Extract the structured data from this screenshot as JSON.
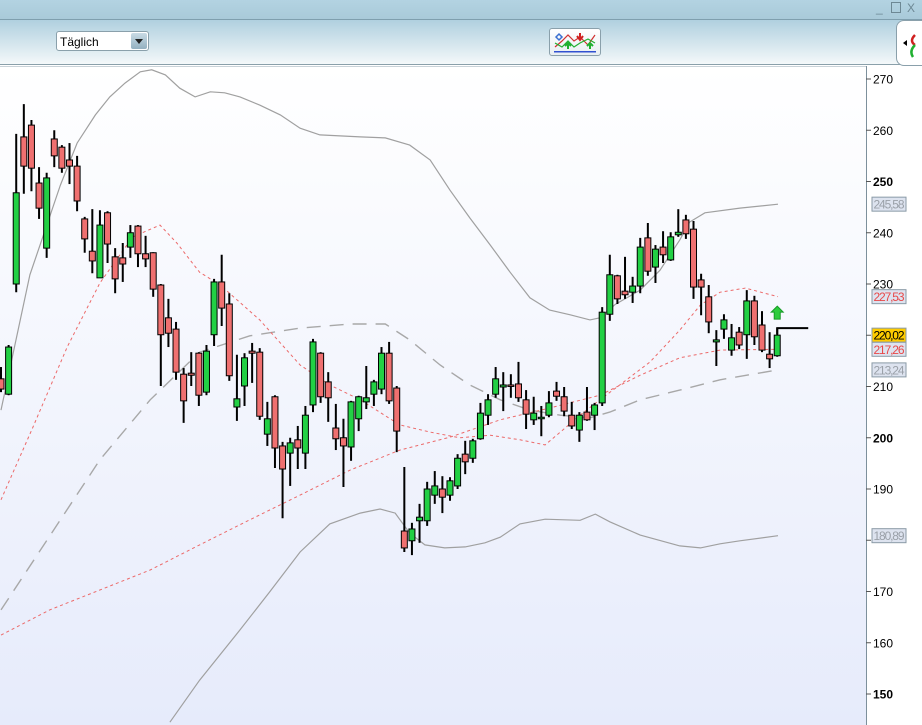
{
  "window": {
    "minimize_icon": "minimize-icon",
    "maximize_icon": "maximize-icon",
    "close_icon": "close-icon"
  },
  "toolbar": {
    "period_select": "Täglich",
    "indicator_button_icon": "indicator-chart-icon",
    "side_button_icon": "signal-arrows-icon"
  },
  "colors": {
    "up": "#22d044",
    "down": "#ef7070",
    "band": "#a0a0a0",
    "envelope": "#ec6a6a",
    "last_price_bg": "#ffcc00",
    "label_bg": "#dde3ef"
  },
  "axis": {
    "ticks": [
      {
        "v": 270,
        "label": "270",
        "bold": false
      },
      {
        "v": 260,
        "label": "260",
        "bold": false
      },
      {
        "v": 250,
        "label": "250",
        "bold": true
      },
      {
        "v": 240,
        "label": "240",
        "bold": false
      },
      {
        "v": 230,
        "label": "230",
        "bold": false
      },
      {
        "v": 210,
        "label": "210",
        "bold": false
      },
      {
        "v": 200,
        "label": "200",
        "bold": true
      },
      {
        "v": 190,
        "label": "190",
        "bold": false
      },
      {
        "v": 170,
        "label": "170",
        "bold": false
      },
      {
        "v": 160,
        "label": "160",
        "bold": false
      },
      {
        "v": 150,
        "label": "150",
        "bold": true
      }
    ],
    "value_labels": [
      {
        "v": 245.58,
        "label": "245,58",
        "style": "gray"
      },
      {
        "v": 227.53,
        "label": "227,53",
        "style": "red"
      },
      {
        "v": 220.02,
        "label": "220,02",
        "style": "last"
      },
      {
        "v": 217.26,
        "label": "217,26",
        "style": "red"
      },
      {
        "v": 213.24,
        "label": "213,24",
        "style": "gray"
      },
      {
        "v": 180.89,
        "label": "180,89",
        "style": "gray"
      }
    ]
  },
  "chart_data": {
    "type": "candlestick",
    "ylim": [
      144,
      272
    ],
    "last_price": 220.02,
    "signal": "buy-arrow",
    "candles_ohlc": [
      [
        211.5,
        213.8,
        208.9,
        209.5
      ],
      [
        208.5,
        218.1,
        208.3,
        217.7
      ],
      [
        230,
        259.3,
        228.4,
        247.8
      ],
      [
        258.7,
        265.1,
        247.6,
        253
      ],
      [
        261,
        262,
        248.1,
        252.6
      ],
      [
        249.7,
        252.8,
        242.7,
        244.8
      ],
      [
        237,
        251.7,
        235.1,
        250.7
      ],
      [
        258.3,
        260,
        252.8,
        255
      ],
      [
        256.7,
        257.1,
        251.7,
        252.6
      ],
      [
        254.2,
        257.5,
        249.5,
        253
      ],
      [
        253,
        255,
        244.2,
        246.2
      ],
      [
        242.7,
        243.1,
        236.1,
        238.8
      ],
      [
        236.4,
        244.6,
        232.1,
        234.5
      ],
      [
        231.2,
        244.4,
        231.2,
        241.5
      ],
      [
        243.9,
        244.2,
        234.1,
        237.8
      ],
      [
        235.3,
        237,
        228.2,
        231
      ],
      [
        235.1,
        238,
        230.4,
        233.9
      ],
      [
        237.2,
        241.5,
        235.1,
        240
      ],
      [
        241.3,
        241.5,
        233.3,
        235.9
      ],
      [
        235.9,
        239.4,
        233.3,
        234.9
      ],
      [
        236.1,
        236.2,
        227.5,
        229
      ],
      [
        229.8,
        230,
        210.1,
        220.1
      ],
      [
        223.4,
        227.1,
        217.7,
        220.4
      ],
      [
        221.2,
        222.6,
        211.3,
        212.8
      ],
      [
        212.4,
        213.6,
        202.9,
        207.2
      ],
      [
        212.6,
        216.7,
        210.1,
        212.2
      ],
      [
        216.5,
        216.7,
        206.2,
        208.3
      ],
      [
        208.9,
        218.1,
        208.3,
        216.9
      ],
      [
        220.1,
        231,
        217.9,
        230.4
      ],
      [
        230.4,
        235.7,
        221.8,
        225.3
      ],
      [
        226.1,
        228.2,
        211.1,
        212.1
      ],
      [
        206,
        216.2,
        203.3,
        207.6
      ],
      [
        210.1,
        216.5,
        206.2,
        215.6
      ],
      [
        216.9,
        218.5,
        210.7,
        216.5
      ],
      [
        216.7,
        217.5,
        203.5,
        204.2
      ],
      [
        200.7,
        207,
        198.4,
        203.7
      ],
      [
        208,
        208.3,
        194.1,
        198
      ],
      [
        198.4,
        199.2,
        184.3,
        193.9
      ],
      [
        197,
        200,
        190.6,
        199
      ],
      [
        199.6,
        202.3,
        193.9,
        198
      ],
      [
        197,
        206.2,
        193.9,
        204.4
      ],
      [
        206.4,
        219.3,
        205,
        218.7
      ],
      [
        216.5,
        216.7,
        206.8,
        208
      ],
      [
        210.9,
        212.8,
        203.1,
        207.8
      ],
      [
        201.9,
        206.6,
        197.6,
        199.8
      ],
      [
        200,
        203.7,
        190.4,
        198.4
      ],
      [
        198.2,
        207.2,
        195.5,
        207
      ],
      [
        203.7,
        208.2,
        201.3,
        208
      ],
      [
        207,
        214,
        205.6,
        207.8
      ],
      [
        208.5,
        211.3,
        206.2,
        210.9
      ],
      [
        209.5,
        217.7,
        208.5,
        216.5
      ],
      [
        216.5,
        218.7,
        206.6,
        207.2
      ],
      [
        209.7,
        210.1,
        197.2,
        201.3
      ],
      [
        181.8,
        194.3,
        177.7,
        178.5
      ],
      [
        179.9,
        183.4,
        177.1,
        182.2
      ],
      [
        183.8,
        187.1,
        179.5,
        184.5
      ],
      [
        183.8,
        191.4,
        182.8,
        190
      ],
      [
        188.8,
        193.5,
        187.1,
        190.6
      ],
      [
        190,
        192.5,
        185.3,
        188.4
      ],
      [
        188.8,
        192.3,
        187.7,
        191.6
      ],
      [
        190.6,
        196.8,
        190,
        196
      ],
      [
        196.8,
        199.4,
        192.9,
        195.3
      ],
      [
        196,
        199.8,
        195.1,
        199.4
      ],
      [
        199.8,
        206.8,
        199.6,
        204.8
      ],
      [
        204.4,
        208.5,
        202.5,
        207.4
      ],
      [
        208.5,
        213.8,
        207.8,
        211.5
      ],
      [
        209.9,
        212.8,
        205.2,
        210.3
      ],
      [
        210.3,
        212.4,
        207.8,
        210.1
      ],
      [
        210.5,
        214.8,
        207,
        207.8
      ],
      [
        207.4,
        209.3,
        201.7,
        204.6
      ],
      [
        203.5,
        208,
        202.5,
        204.8
      ],
      [
        204,
        206.2,
        200.3,
        204
      ],
      [
        204.4,
        209.1,
        204,
        206.8
      ],
      [
        209.1,
        210.9,
        207.2,
        208.1
      ],
      [
        208,
        209.9,
        204.2,
        205.2
      ],
      [
        204.4,
        207,
        201.7,
        202.3
      ],
      [
        201.5,
        205,
        199.2,
        204.4
      ],
      [
        205,
        209.9,
        203.3,
        203.5
      ],
      [
        204.4,
        206.8,
        201.5,
        206.4
      ],
      [
        206.8,
        225.5,
        206.2,
        224.5
      ],
      [
        224.1,
        235.7,
        222.8,
        231.8
      ],
      [
        231.6,
        231.8,
        226.1,
        227.1
      ],
      [
        228.6,
        235.3,
        227.1,
        227.9
      ],
      [
        228.4,
        231.4,
        226.3,
        229.6
      ],
      [
        229.6,
        239,
        228.2,
        237.2
      ],
      [
        239,
        241.9,
        231.6,
        232.5
      ],
      [
        233.3,
        237.6,
        230.2,
        236.8
      ],
      [
        237.2,
        240.3,
        234.1,
        235.7
      ],
      [
        234.7,
        240.1,
        234.5,
        239.2
      ],
      [
        239.6,
        244.6,
        239.2,
        240.1
      ],
      [
        242.5,
        243.5,
        238.8,
        239.8
      ],
      [
        240.7,
        242.3,
        227.1,
        229.4
      ],
      [
        230.8,
        232,
        223.9,
        229.4
      ],
      [
        227.5,
        229.8,
        220.4,
        222.6
      ],
      [
        218.7,
        221,
        214,
        219.1
      ],
      [
        221.2,
        224.1,
        219.3,
        223
      ],
      [
        217.1,
        222.2,
        216,
        219.5
      ],
      [
        220.6,
        221.6,
        217.3,
        218.1
      ],
      [
        220.1,
        228.8,
        215.4,
        226.7
      ],
      [
        226.7,
        227.7,
        218.1,
        219.7
      ],
      [
        222,
        224.7,
        216.7,
        217.1
      ],
      [
        216.3,
        220.6,
        213.6,
        215.4
      ],
      [
        216,
        221.4,
        215.8,
        220.02
      ]
    ],
    "lines": [
      {
        "style": "band-upper",
        "points": [
          [
            0,
            205.4
          ],
          [
            3.8,
            231.8
          ],
          [
            5.8,
            240.5
          ],
          [
            7.8,
            249.3
          ],
          [
            10,
            257.5
          ],
          [
            12.4,
            263
          ],
          [
            14.3,
            266.5
          ],
          [
            16.3,
            269.2
          ],
          [
            18.3,
            271.4
          ],
          [
            19.8,
            271.8
          ],
          [
            21.6,
            270.8
          ],
          [
            23.5,
            268.2
          ],
          [
            25.5,
            266.5
          ],
          [
            27.5,
            267.5
          ],
          [
            29.4,
            267.3
          ],
          [
            31.4,
            266.5
          ],
          [
            34,
            264.9
          ],
          [
            36.7,
            263
          ],
          [
            39.3,
            260.4
          ],
          [
            41.9,
            259.1
          ],
          [
            47.2,
            258.7
          ],
          [
            50.5,
            258.5
          ],
          [
            53.7,
            257.1
          ],
          [
            56.4,
            254.2
          ],
          [
            59,
            248.3
          ],
          [
            61.6,
            242.9
          ],
          [
            64.3,
            237.6
          ],
          [
            66.9,
            232.3
          ],
          [
            69.5,
            227.3
          ],
          [
            72.1,
            224.9
          ],
          [
            74.8,
            224
          ],
          [
            77.4,
            223
          ],
          [
            78.7,
            223.4
          ],
          [
            80.7,
            226
          ],
          [
            84,
            228.8
          ],
          [
            86.6,
            232.7
          ],
          [
            89.2,
            238.6
          ],
          [
            90.5,
            242.1
          ],
          [
            92.5,
            243.9
          ],
          [
            97.1,
            244.8
          ],
          [
            102.1,
            245.58
          ]
        ]
      },
      {
        "style": "band-lower",
        "points": [
          [
            22.2,
            144.5
          ],
          [
            26.1,
            152.7
          ],
          [
            31.4,
            162.5
          ],
          [
            35.3,
            169.9
          ],
          [
            39.3,
            177.7
          ],
          [
            43.2,
            183.2
          ],
          [
            47.2,
            185.3
          ],
          [
            49.8,
            186.1
          ],
          [
            51.8,
            185.3
          ],
          [
            53.7,
            181.4
          ],
          [
            55.7,
            179.1
          ],
          [
            58.3,
            178.5
          ],
          [
            61,
            178.7
          ],
          [
            63.6,
            179.5
          ],
          [
            65.6,
            180.6
          ],
          [
            68.2,
            183.2
          ],
          [
            71.5,
            184.1
          ],
          [
            76.1,
            183.9
          ],
          [
            78.1,
            185.1
          ],
          [
            80,
            183.6
          ],
          [
            84,
            181
          ],
          [
            89.2,
            178.9
          ],
          [
            91.9,
            178.5
          ],
          [
            94.5,
            179.3
          ],
          [
            97.1,
            179.9
          ],
          [
            102.1,
            180.89
          ]
        ]
      },
      {
        "style": "band-middle",
        "points": [
          [
            0,
            166.4
          ],
          [
            7.8,
            184
          ],
          [
            13,
            195.7
          ],
          [
            19.6,
            207.4
          ],
          [
            26.1,
            216.7
          ],
          [
            32.7,
            219.9
          ],
          [
            39.3,
            221.4
          ],
          [
            45.9,
            222.2
          ],
          [
            50.5,
            222.2
          ],
          [
            53.7,
            219.1
          ],
          [
            57.7,
            214.2
          ],
          [
            61.6,
            210.3
          ],
          [
            65.6,
            207.4
          ],
          [
            69.5,
            205.4
          ],
          [
            73.5,
            204.4
          ],
          [
            77.4,
            203.9
          ],
          [
            80,
            205
          ],
          [
            84,
            207.4
          ],
          [
            89.2,
            209.3
          ],
          [
            94.5,
            211.3
          ],
          [
            102.1,
            213.24
          ]
        ]
      },
      {
        "style": "envelope-upper",
        "points": [
          [
            0,
            187.9
          ],
          [
            4.2,
            202.1
          ],
          [
            8.7,
            217.7
          ],
          [
            13,
            230.2
          ],
          [
            17.3,
            239.2
          ],
          [
            20.9,
            241.5
          ],
          [
            23.1,
            238
          ],
          [
            26.1,
            232.3
          ],
          [
            28.8,
            229.8
          ],
          [
            34,
            223
          ],
          [
            39.3,
            214.2
          ],
          [
            43.2,
            210.3
          ],
          [
            47.2,
            207.4
          ],
          [
            52.4,
            202.5
          ],
          [
            56.4,
            201.1
          ],
          [
            60.3,
            200
          ],
          [
            64.3,
            200.5
          ],
          [
            68.2,
            199.6
          ],
          [
            71.5,
            198.6
          ],
          [
            73.5,
            201.1
          ],
          [
            76.1,
            204.4
          ],
          [
            78.7,
            207.4
          ],
          [
            81.3,
            210.3
          ],
          [
            85.3,
            214.8
          ],
          [
            89.2,
            221
          ],
          [
            91.9,
            225.9
          ],
          [
            94.5,
            228.4
          ],
          [
            97.8,
            229.2
          ],
          [
            102.1,
            227.53
          ]
        ]
      },
      {
        "style": "envelope-lower",
        "points": [
          [
            0,
            161.5
          ],
          [
            6.4,
            166.4
          ],
          [
            13,
            170.3
          ],
          [
            19.6,
            174.2
          ],
          [
            26.1,
            179.1
          ],
          [
            32.7,
            184
          ],
          [
            39.3,
            188.8
          ],
          [
            45.9,
            193.7
          ],
          [
            52.4,
            197.6
          ],
          [
            59,
            200.1
          ],
          [
            65.6,
            203.5
          ],
          [
            72.1,
            205.8
          ],
          [
            78.7,
            208.3
          ],
          [
            84,
            212.2
          ],
          [
            89.2,
            215.6
          ],
          [
            94.5,
            217.1
          ],
          [
            102.1,
            217.26
          ]
        ]
      }
    ]
  }
}
